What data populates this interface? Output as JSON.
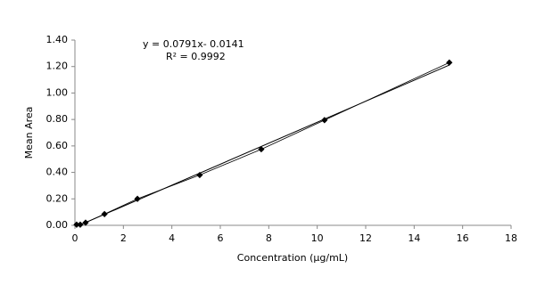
{
  "chart_data": {
    "type": "scatter",
    "x_label": "Concentration (µg/mL)",
    "y_label": "Mean Area",
    "annotations": [
      "y = 0.0791x- 0.0141",
      "R² = 0.9992"
    ],
    "trendline": true,
    "marker": "diamond",
    "grid": false,
    "series": [
      {
        "color": "#000000",
        "x": [
          0.07,
          0.22,
          0.44,
          1.22,
          2.58,
          5.15,
          7.69,
          10.3,
          15.45
        ],
        "values": [
          0.005,
          0.005,
          0.02,
          0.085,
          0.2,
          0.38,
          0.575,
          0.795,
          1.23
        ]
      }
    ],
    "xlim": [
      0,
      18
    ],
    "xticks": [
      0,
      2,
      4,
      6,
      8,
      10,
      12,
      14,
      16,
      18
    ],
    "ylim": [
      0,
      1.4
    ],
    "yticks": [
      {
        "value": 0,
        "label": "0.00"
      },
      {
        "value": 0.2,
        "label": "0.20"
      },
      {
        "value": 0.4,
        "label": "0.40"
      },
      {
        "value": 0.6,
        "label": "0.60"
      },
      {
        "value": 0.8,
        "label": "0.80"
      },
      {
        "value": 1.0,
        "label": "1.00"
      },
      {
        "value": 1.2,
        "label": "1.20"
      },
      {
        "value": 1.4,
        "label": "1.40"
      }
    ]
  }
}
